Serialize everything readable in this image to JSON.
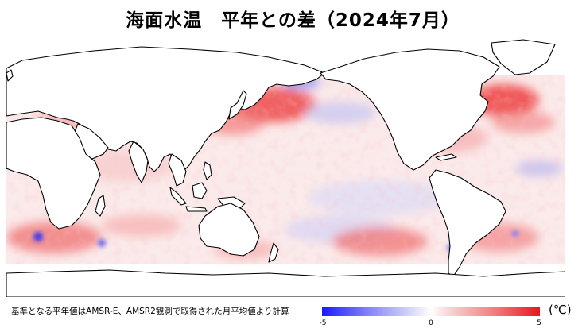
{
  "title": "海面水温　平年との差（2024年7月）",
  "footnote": "基準となる平年値はAMSR-E、AMSR2観測で取得された月平均値より計算",
  "colorbar": {
    "unit": "(℃)",
    "ticks": [
      "-5",
      "0",
      "5"
    ],
    "min_color": "#1a1aff",
    "mid_color": "#ffffff",
    "max_color": "#e8171a"
  },
  "map": {
    "projection": "equirectangular, Pacific-centered",
    "land_color": "#ffffff",
    "coastline_color": "#000000"
  }
}
